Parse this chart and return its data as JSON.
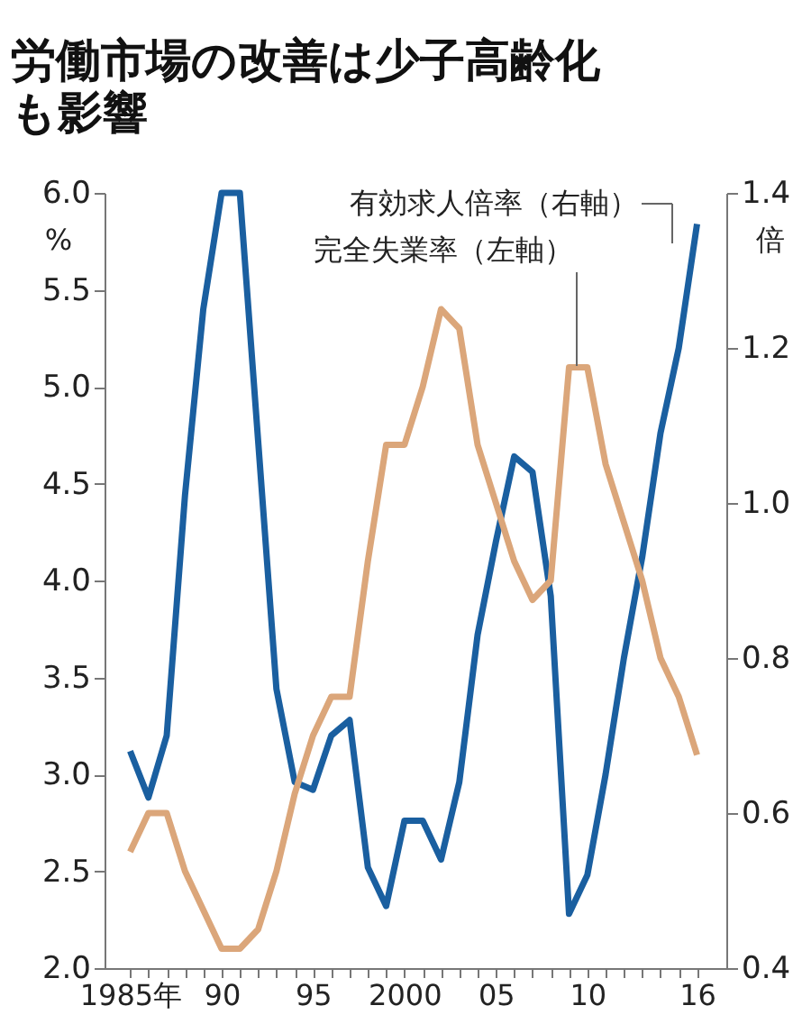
{
  "chart_data": {
    "type": "line",
    "title": "労働市場の改善は少子高齢化も影響",
    "ylabel": "%",
    "y2label": "倍",
    "x": [
      1985,
      1986,
      1987,
      1988,
      1989,
      1990,
      1991,
      1992,
      1993,
      1994,
      1995,
      1996,
      1997,
      1998,
      1999,
      2000,
      2001,
      2002,
      2003,
      2004,
      2005,
      2006,
      2007,
      2008,
      2009,
      2010,
      2011,
      2012,
      2013,
      2014,
      2015,
      2016
    ],
    "series": [
      {
        "name": "有効求人倍率（右軸）",
        "color": "#1a5fa0",
        "axis": "y2",
        "values": [
          0.68,
          0.62,
          0.7,
          1.01,
          1.25,
          1.4,
          1.4,
          1.08,
          0.76,
          0.64,
          0.63,
          0.7,
          0.72,
          0.53,
          0.48,
          0.59,
          0.59,
          0.54,
          0.64,
          0.83,
          0.95,
          1.06,
          1.04,
          0.88,
          0.47,
          0.52,
          0.65,
          0.8,
          0.93,
          1.09,
          1.2,
          1.36
        ]
      },
      {
        "name": "完全失業率（左軸）",
        "color": "#dba67a",
        "values": [
          2.6,
          2.8,
          2.8,
          2.5,
          2.3,
          2.1,
          2.1,
          2.2,
          2.5,
          2.9,
          3.2,
          3.4,
          3.4,
          4.1,
          4.7,
          4.7,
          5.0,
          5.4,
          5.3,
          4.7,
          4.4,
          4.1,
          3.9,
          4.0,
          5.1,
          5.1,
          4.6,
          4.3,
          4.0,
          3.6,
          3.4,
          3.1
        ]
      }
    ],
    "xlim": [
      1983.6,
      2017.6
    ],
    "xticks": [
      {
        "value": 1985,
        "label": "1985年"
      },
      {
        "value": 1986,
        "label": null
      },
      {
        "value": 1987,
        "label": null
      },
      {
        "value": 1988,
        "label": null
      },
      {
        "value": 1989,
        "label": null
      },
      {
        "value": 1990,
        "label": "90"
      },
      {
        "value": 1991,
        "label": null
      },
      {
        "value": 1992,
        "label": null
      },
      {
        "value": 1993,
        "label": null
      },
      {
        "value": 1994,
        "label": null
      },
      {
        "value": 1995,
        "label": "95"
      },
      {
        "value": 1996,
        "label": null
      },
      {
        "value": 1997,
        "label": null
      },
      {
        "value": 1998,
        "label": null
      },
      {
        "value": 1999,
        "label": null
      },
      {
        "value": 2000,
        "label": "2000"
      },
      {
        "value": 2001,
        "label": null
      },
      {
        "value": 2002,
        "label": null
      },
      {
        "value": 2003,
        "label": null
      },
      {
        "value": 2004,
        "label": null
      },
      {
        "value": 2005,
        "label": "05"
      },
      {
        "value": 2006,
        "label": null
      },
      {
        "value": 2007,
        "label": null
      },
      {
        "value": 2008,
        "label": null
      },
      {
        "value": 2009,
        "label": null
      },
      {
        "value": 2010,
        "label": "10"
      },
      {
        "value": 2011,
        "label": null
      },
      {
        "value": 2012,
        "label": null
      },
      {
        "value": 2013,
        "label": null
      },
      {
        "value": 2014,
        "label": null
      },
      {
        "value": 2015,
        "label": null
      },
      {
        "value": 2016,
        "label": "16"
      }
    ],
    "ylim": [
      2.0,
      6.0
    ],
    "yticks": [
      {
        "value": 2,
        "label": "2.0"
      },
      2.5,
      {
        "value": 3,
        "label": "3.0"
      },
      3.5,
      {
        "value": 4,
        "label": "4.0"
      },
      4.5,
      {
        "value": 5,
        "label": "5.0"
      },
      5.5,
      {
        "value": 6,
        "label": "6.0"
      }
    ],
    "y2lim": [
      0.4,
      1.4
    ],
    "y2ticks": [
      0.4,
      0.6,
      0.8,
      {
        "value": 1,
        "label": "1.0"
      },
      1.2,
      1.4
    ],
    "grid": false,
    "marker": "none",
    "line_style": "solid"
  }
}
